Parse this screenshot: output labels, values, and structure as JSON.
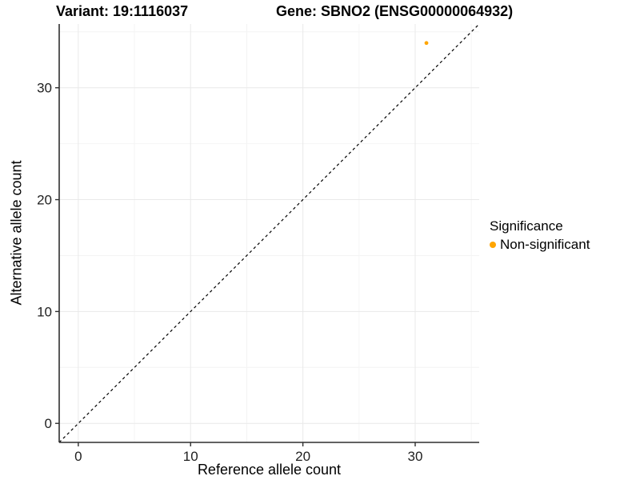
{
  "titles": {
    "variant": "Variant: 19:1116037",
    "gene": "Gene: SBNO2 (ENSG00000064932)"
  },
  "chart_data": {
    "type": "scatter",
    "xlabel": "Reference allele count",
    "ylabel": "Alternative allele count",
    "xlim": [
      -1.7,
      35.7
    ],
    "ylim": [
      -1.7,
      35.7
    ],
    "x_ticks": [
      0,
      10,
      20,
      30
    ],
    "y_ticks": [
      0,
      10,
      20,
      30
    ],
    "x_minor_ticks": [
      5,
      15,
      25,
      35
    ],
    "y_minor_ticks": [
      5,
      15,
      25,
      35
    ],
    "grid": true,
    "series": [
      {
        "name": "Non-significant",
        "color": "#FFA500",
        "points": [
          [
            31,
            34
          ]
        ]
      }
    ],
    "reference_line": {
      "slope": 1,
      "intercept": 0,
      "style": "dashed",
      "color": "#000000"
    },
    "legend": {
      "title": "Significance",
      "position": "right",
      "items": [
        {
          "label": "Non-significant",
          "color": "#FFA500"
        }
      ]
    }
  },
  "colors": {
    "axis_line": "#2e2e2e",
    "tick_label": "#1f1f1f",
    "grid_major": "#e9e9e9",
    "grid_minor": "#f4f4f4",
    "background": "#ffffff"
  }
}
